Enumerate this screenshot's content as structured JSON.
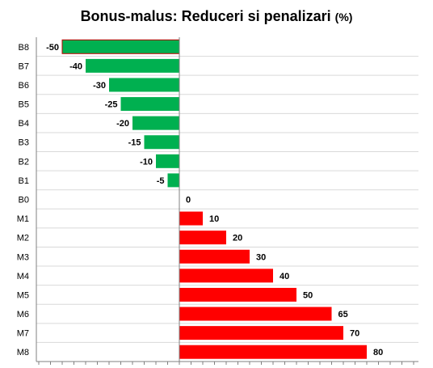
{
  "chart_data": {
    "type": "bar",
    "orientation": "horizontal",
    "title": "Bonus-malus:  Reduceri si penalizari (%)",
    "title_parts": {
      "main": "Bonus-malus:  Reduceri si penalizari ",
      "unit": "(%)"
    },
    "xlabel": "",
    "ylabel": "",
    "xlim": [
      -50,
      100
    ],
    "grid": true,
    "legend": "none",
    "categories": [
      "B8",
      "B7",
      "B6",
      "B5",
      "B4",
      "B3",
      "B2",
      "B1",
      "B0",
      "M1",
      "M2",
      "M3",
      "M4",
      "M5",
      "M6",
      "M7",
      "M8"
    ],
    "values": [
      -50,
      -40,
      -30,
      -25,
      -20,
      -15,
      -10,
      -5,
      0,
      10,
      20,
      30,
      40,
      50,
      65,
      70,
      80
    ],
    "colors": {
      "negative": "#00b050",
      "positive": "#ff0000",
      "gridline": "#d9d9d9",
      "axis": "#000000"
    }
  }
}
